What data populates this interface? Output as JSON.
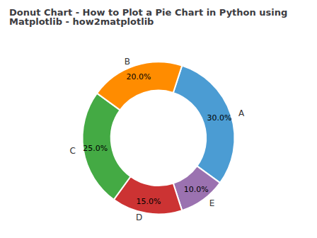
{
  "chart_data": {
    "type": "pie",
    "title": "Donut Chart - How to Plot a Pie Chart in Python using Matplotlib - how2matplotlib",
    "categories": [
      "A",
      "E",
      "D",
      "C",
      "B"
    ],
    "values": [
      30.0,
      10.0,
      15.0,
      25.0,
      20.0
    ],
    "value_labels": [
      "30.0%",
      "10.0%",
      "15.0%",
      "25.0%",
      "20.0%"
    ],
    "colors": [
      "#4B9CD3",
      "#9B72B0",
      "#CC3333",
      "#44AA44",
      "#FF8C00"
    ],
    "data_labels": true
  }
}
